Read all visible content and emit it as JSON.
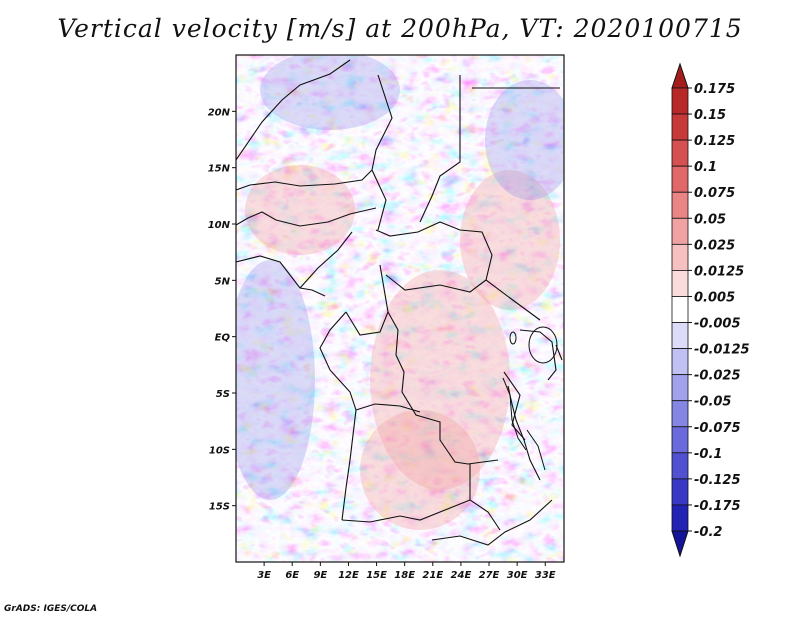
{
  "title": "Vertical velocity [m/s] at 200hPa, VT: 2020100715",
  "credit": "GrADS: IGES/COLA",
  "map": {
    "lat_labels": [
      "20N",
      "15N",
      "10N",
      "5N",
      "EQ",
      "5S",
      "10S",
      "15S"
    ],
    "lat_values": [
      20,
      15,
      10,
      5,
      0,
      -5,
      -10,
      -15
    ],
    "lon_labels": [
      "3E",
      "6E",
      "9E",
      "12E",
      "15E",
      "18E",
      "21E",
      "24E",
      "27E",
      "30E",
      "33E"
    ],
    "lon_values": [
      3,
      6,
      9,
      12,
      15,
      18,
      21,
      24,
      27,
      30,
      33
    ],
    "lon_range": [
      0,
      35
    ],
    "lat_range": [
      -20,
      25
    ]
  },
  "colorbar": {
    "labels": [
      "0.175",
      "0.15",
      "0.125",
      "0.1",
      "0.075",
      "0.05",
      "0.025",
      "0.0125",
      "0.005",
      "-0.005",
      "-0.0125",
      "-0.025",
      "-0.05",
      "-0.075",
      "-0.1",
      "-0.125",
      "-0.175",
      "-0.2"
    ],
    "colors": [
      "#a51c1c",
      "#b82828",
      "#c83a3a",
      "#d55050",
      "#e06868",
      "#e98585",
      "#f0a2a2",
      "#f6c0c0",
      "#fbdcdc",
      "#ffffff",
      "#dcdcf8",
      "#c0c0f2",
      "#a2a2ec",
      "#8585e4",
      "#6a6adc",
      "#5050d0",
      "#3838c4",
      "#2222b4",
      "#14149a"
    ]
  }
}
